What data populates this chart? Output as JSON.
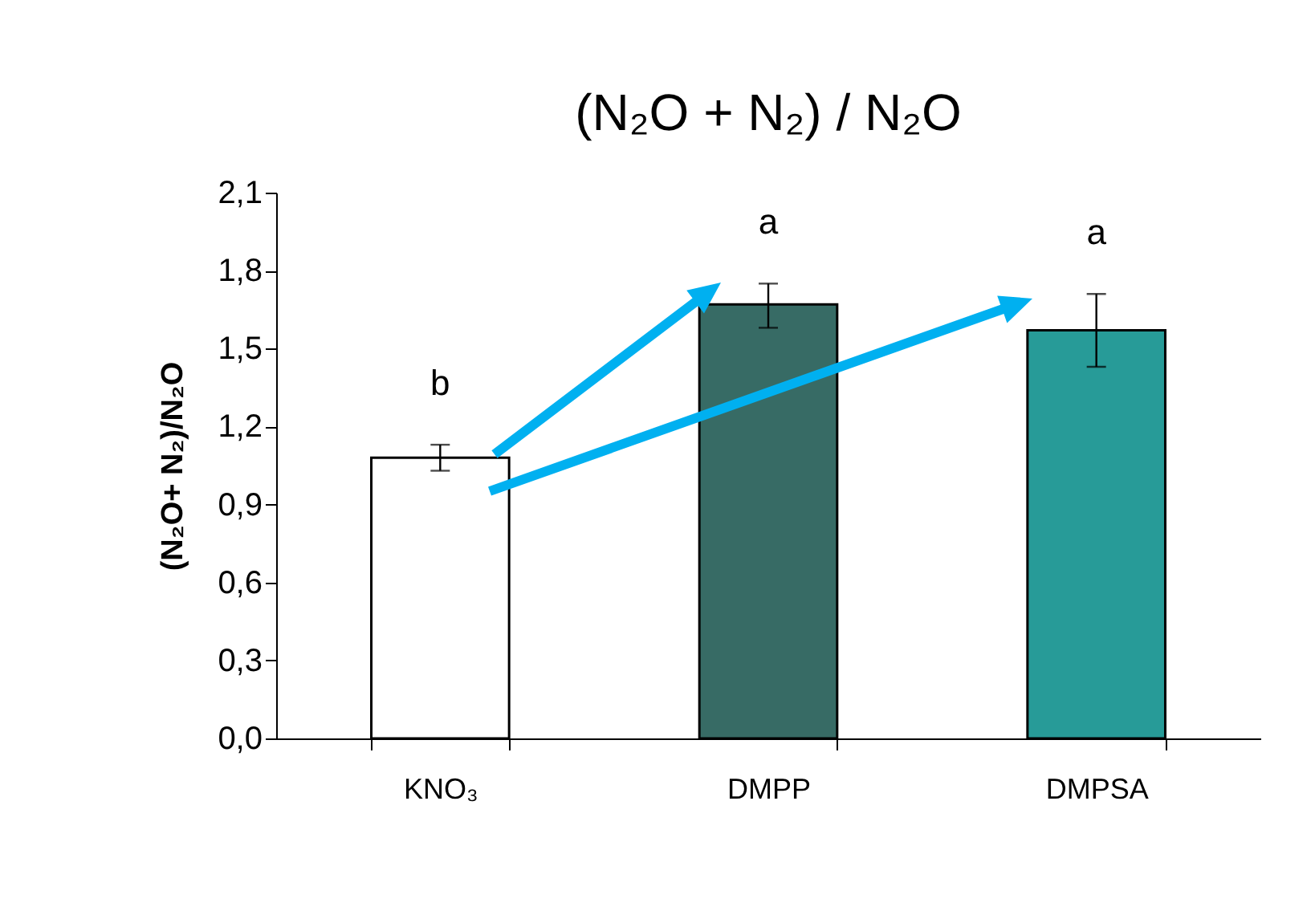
{
  "chart_data": {
    "type": "bar",
    "title": "(N₂O + N₂) / N₂O",
    "ylabel": "(N₂O+ N₂)/N₂O",
    "categories": [
      "KNO₃",
      "DMPP",
      "DMPSA"
    ],
    "values": [
      1.08,
      1.67,
      1.57
    ],
    "colors": [
      "#ffffff",
      "#376b65",
      "#279b98"
    ],
    "errors": [
      [
        1.03,
        1.13
      ],
      [
        1.58,
        1.75
      ],
      [
        1.43,
        1.71
      ]
    ],
    "ylim": [
      0,
      2.1
    ],
    "yticks": [
      {
        "value": 0,
        "label": "0,0"
      },
      {
        "value": 0.3,
        "label": "0,3"
      },
      {
        "value": 0.6,
        "label": "0,6"
      },
      {
        "value": 0.9,
        "label": "0,9"
      },
      {
        "value": 1.2,
        "label": "1,2"
      },
      {
        "value": 1.5,
        "label": "1,5"
      },
      {
        "value": 1.8,
        "label": "1,8"
      },
      {
        "value": 2.1,
        "label": "2,1"
      }
    ],
    "grid": false,
    "annotations": [
      "b",
      "a",
      "a"
    ]
  }
}
